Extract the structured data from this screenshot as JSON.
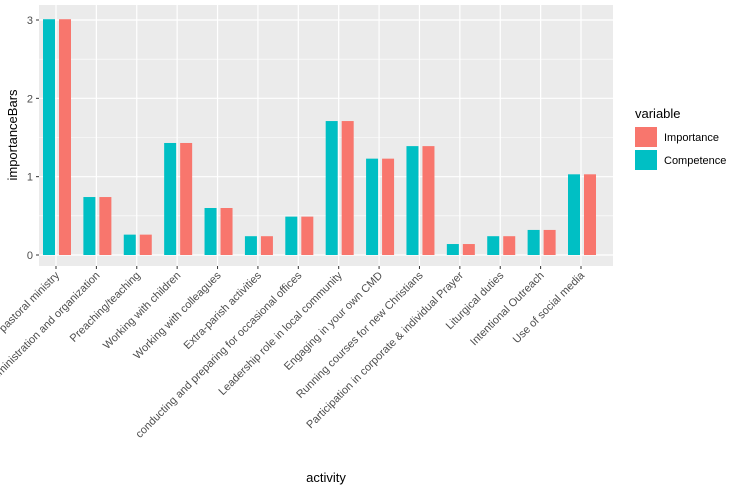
{
  "chart_data": {
    "type": "bar",
    "title": "",
    "xlabel": "activity",
    "ylabel": "importanceBars",
    "ylim": [
      0,
      3.3
    ],
    "yticks": [
      "0",
      "1",
      "2",
      "3"
    ],
    "grid": true,
    "legend": {
      "title": "variable",
      "position": "right",
      "entries": [
        "Importance",
        "Competence"
      ]
    },
    "categories": [
      "Collaborative pastoral ministry",
      "Administration and organization",
      "Preaching/teaching",
      "Working with children",
      "Working with colleagues",
      "Extra-parish activities",
      "conducting and preparing for occasional offices",
      "Leadership role in local community",
      "Engaging in your own CMD",
      "Running courses for new Christians",
      "Participation in corporate & individual Prayer",
      "Liturgical duties",
      "Intentional Outreach",
      "Use of social media"
    ],
    "series": [
      {
        "name": "Competence",
        "color": "#00BFC4",
        "values": [
          3.01,
          0.74,
          0.26,
          1.43,
          0.6,
          0.24,
          0.49,
          1.71,
          1.23,
          1.39,
          0.14,
          0.24,
          0.32,
          1.03
        ]
      },
      {
        "name": "Importance",
        "color": "#F8766D",
        "values": [
          3.01,
          0.74,
          0.26,
          1.43,
          0.6,
          0.24,
          0.49,
          1.71,
          1.23,
          1.39,
          0.14,
          0.24,
          0.32,
          1.03
        ]
      }
    ]
  }
}
